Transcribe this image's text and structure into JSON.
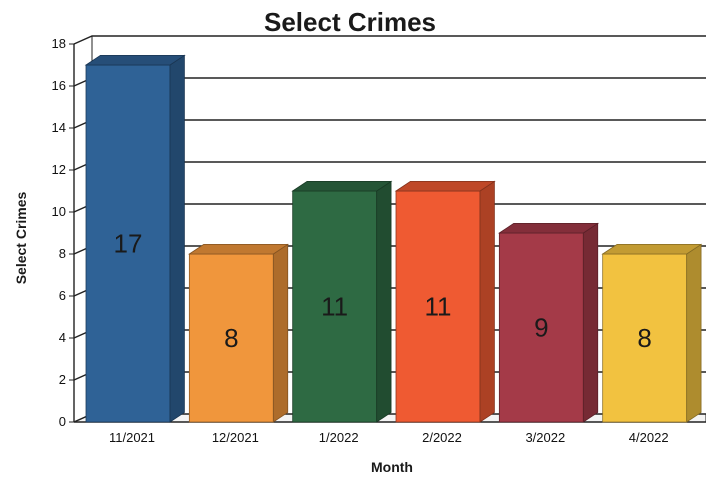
{
  "chart_data": {
    "type": "bar",
    "title": "Select Crimes",
    "xlabel": "Month",
    "ylabel": "Select Crimes",
    "ylim": [
      0,
      18
    ],
    "yticks": [
      0,
      2,
      4,
      6,
      8,
      10,
      12,
      14,
      16,
      18
    ],
    "grid": true,
    "legend": "none",
    "categories": [
      "11/2021",
      "12/2021",
      "1/2022",
      "2/2022",
      "3/2022",
      "4/2022"
    ],
    "values": [
      17,
      8,
      11,
      11,
      9,
      8
    ],
    "data_labels": [
      "17",
      "8",
      "11",
      "11",
      "9",
      "8"
    ],
    "colors": [
      "#2f6296",
      "#f0963c",
      "#2e6a43",
      "#ef5a32",
      "#a43a48",
      "#f2c240"
    ]
  }
}
